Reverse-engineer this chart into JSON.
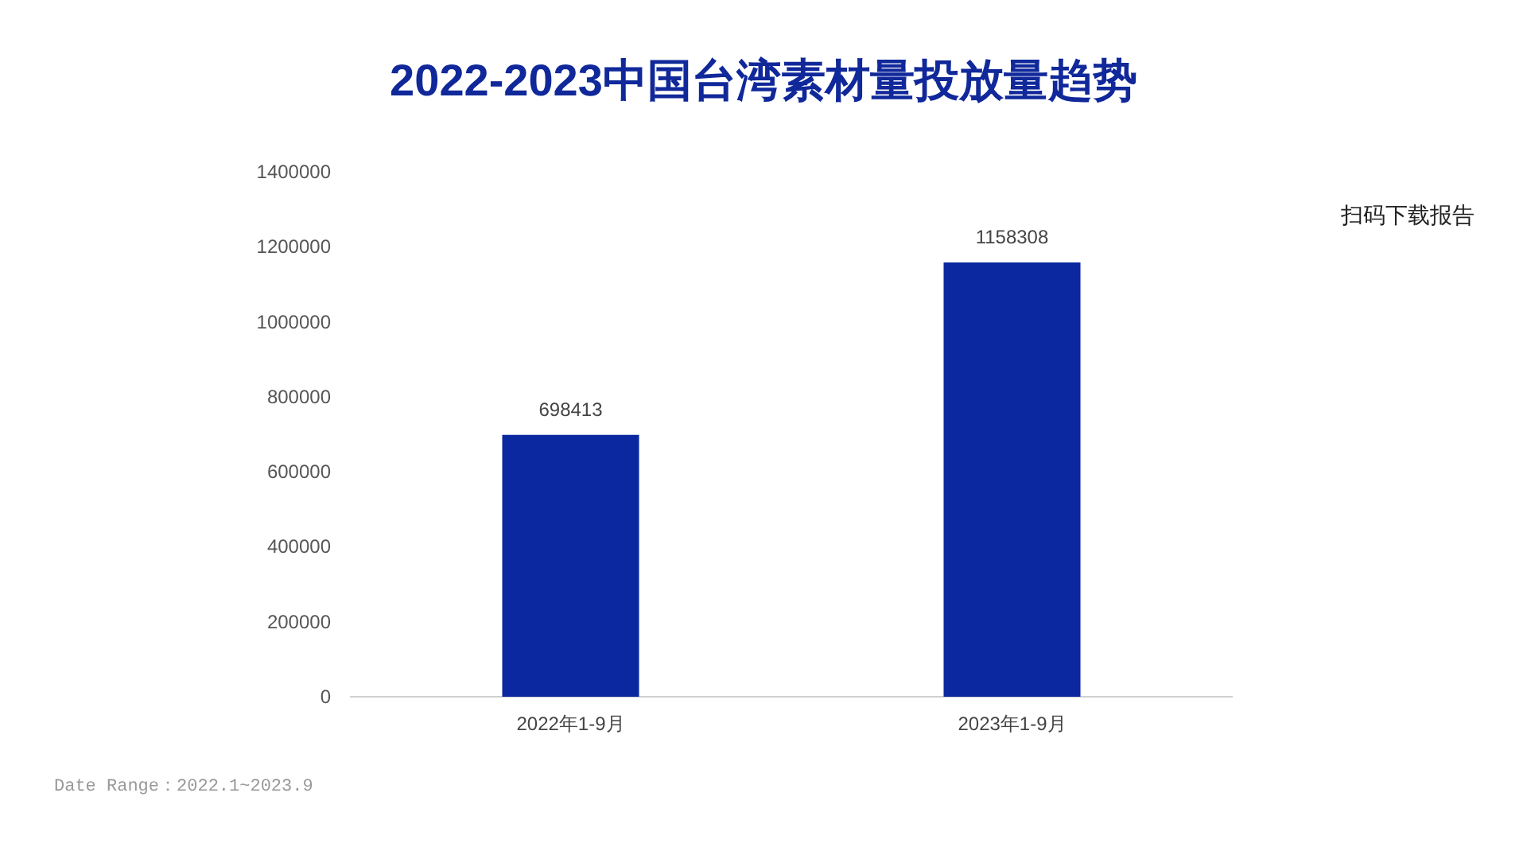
{
  "chart_data": {
    "type": "bar",
    "title": "2022-2023中国台湾素材量投放量趋势",
    "categories": [
      "2022年1-9月",
      "2023年1-9月"
    ],
    "values": [
      698413,
      1158308
    ],
    "color": "#0b28a0",
    "ylim": [
      0,
      1400000
    ],
    "yticks": [
      0,
      200000,
      400000,
      600000,
      800000,
      1000000,
      1200000,
      1400000
    ],
    "data_labels": true,
    "grid": false,
    "annotations": [
      "扫码下载报告",
      "Date Range：2022.1~2023.9"
    ]
  }
}
